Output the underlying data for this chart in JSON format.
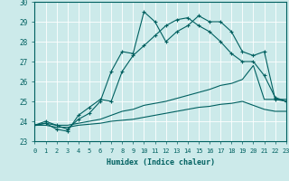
{
  "xlabel": "Humidex (Indice chaleur)",
  "xlim": [
    0,
    23
  ],
  "ylim": [
    23,
    30
  ],
  "xticks": [
    0,
    1,
    2,
    3,
    4,
    5,
    6,
    7,
    8,
    9,
    10,
    11,
    12,
    13,
    14,
    15,
    16,
    17,
    18,
    19,
    20,
    21,
    22,
    23
  ],
  "yticks": [
    23,
    24,
    25,
    26,
    27,
    28,
    29,
    30
  ],
  "bg_color": "#cceaea",
  "grid_color": "#ffffff",
  "line_color": "#006060",
  "series1_x": [
    0,
    1,
    2,
    3,
    4,
    5,
    6,
    7,
    8,
    9,
    10,
    11,
    12,
    13,
    14,
    15,
    16,
    17,
    18,
    19,
    20,
    21,
    22,
    23
  ],
  "series1_y": [
    23.8,
    24.0,
    23.8,
    23.6,
    24.1,
    24.4,
    25.0,
    26.5,
    27.5,
    27.4,
    29.5,
    29.0,
    28.0,
    28.5,
    28.8,
    29.3,
    29.0,
    29.0,
    28.5,
    27.5,
    27.3,
    27.5,
    25.1,
    25.0
  ],
  "series2_x": [
    0,
    1,
    2,
    3,
    4,
    5,
    6,
    7,
    8,
    9,
    10,
    11,
    12,
    13,
    14,
    15,
    16,
    17,
    18,
    19,
    20,
    21,
    22,
    23
  ],
  "series2_y": [
    23.8,
    23.9,
    23.6,
    23.5,
    24.3,
    24.7,
    25.1,
    25.0,
    26.5,
    27.3,
    27.8,
    28.3,
    28.8,
    29.1,
    29.2,
    28.8,
    28.5,
    28.0,
    27.4,
    27.0,
    27.0,
    26.3,
    25.2,
    25.0
  ],
  "series3_x": [
    0,
    1,
    2,
    3,
    4,
    5,
    6,
    7,
    8,
    9,
    10,
    11,
    12,
    13,
    14,
    15,
    16,
    17,
    18,
    19,
    20,
    21,
    22,
    23
  ],
  "series3_y": [
    23.8,
    23.9,
    23.8,
    23.8,
    23.9,
    24.0,
    24.1,
    24.3,
    24.5,
    24.6,
    24.8,
    24.9,
    25.0,
    25.15,
    25.3,
    25.45,
    25.6,
    25.8,
    25.9,
    26.1,
    26.8,
    25.1,
    25.1,
    25.1
  ],
  "series4_x": [
    0,
    1,
    2,
    3,
    4,
    5,
    6,
    7,
    8,
    9,
    10,
    11,
    12,
    13,
    14,
    15,
    16,
    17,
    18,
    19,
    20,
    21,
    22,
    23
  ],
  "series4_y": [
    23.8,
    23.8,
    23.7,
    23.7,
    23.8,
    23.85,
    23.9,
    24.0,
    24.05,
    24.1,
    24.2,
    24.3,
    24.4,
    24.5,
    24.6,
    24.7,
    24.75,
    24.85,
    24.9,
    25.0,
    24.8,
    24.6,
    24.5,
    24.5
  ]
}
